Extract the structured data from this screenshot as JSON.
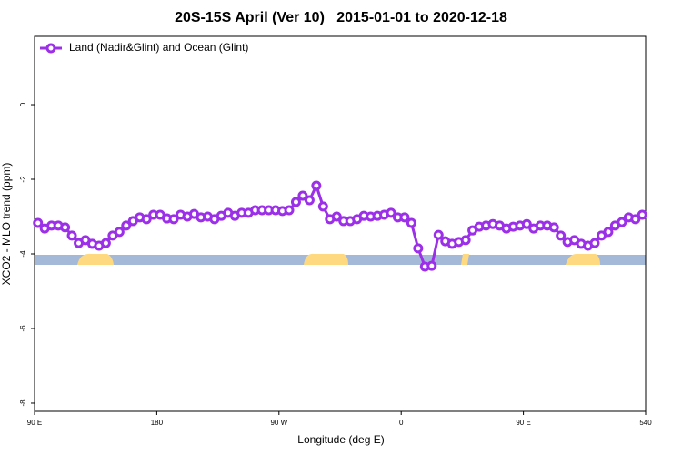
{
  "chart_data": {
    "type": "line",
    "title": "20S-15S April (Ver 10)   2015-01-01 to 2020-12-18",
    "x_label": "Longitude (deg E)",
    "y_label": "XCO2 - MLO trend (ppm)",
    "xlim": [
      90,
      540
    ],
    "ylim": [
      -8.22,
      1.83
    ],
    "xticks": [
      {
        "value": 90,
        "label": "90 E"
      },
      180,
      {
        "value": 270,
        "label": "90 W"
      },
      {
        "value": 360,
        "label": "0"
      },
      {
        "value": 450,
        "label": "90 E"
      },
      540
    ],
    "yticks": [
      0,
      -2,
      -4,
      -6,
      -8
    ],
    "legend": "top-left",
    "x": [
      92.5,
      97.5,
      102.5,
      107.5,
      112.5,
      117.5,
      122.5,
      127.5,
      132.5,
      137.5,
      142.5,
      147.5,
      152.5,
      157.5,
      162.5,
      167.5,
      172.5,
      177.5,
      182.5,
      187.5,
      192.5,
      197.5,
      202.5,
      207.5,
      212.5,
      217.5,
      222.5,
      227.5,
      232.5,
      237.5,
      242.5,
      247.5,
      252.5,
      257.5,
      262.5,
      267.5,
      272.5,
      277.5,
      282.5,
      287.5,
      292.5,
      297.5,
      302.5,
      307.5,
      312.5,
      317.5,
      322.5,
      327.5,
      332.5,
      337.5,
      342.5,
      347.5,
      352.5,
      357.5,
      362.5,
      367.5,
      372.5,
      377.5,
      382.5,
      387.5,
      392.5,
      397.5,
      402.5,
      407.5,
      412.5,
      417.5,
      422.5,
      427.5,
      432.5,
      437.5,
      442.5,
      447.5,
      452.5,
      457.5,
      462.5,
      467.5,
      472.5,
      477.5,
      482.5,
      487.5,
      492.5,
      497.5,
      502.5,
      507.5,
      512.5,
      517.5,
      522.5,
      527.5,
      532.5,
      537.5
    ],
    "series": [
      {
        "name": "Land (Nadir&Glint) and Ocean (Glint)",
        "color": "#9b30e8",
        "values": [
          -3.17,
          -3.32,
          -3.24,
          -3.24,
          -3.29,
          -3.51,
          -3.71,
          -3.63,
          -3.73,
          -3.78,
          -3.71,
          -3.51,
          -3.41,
          -3.24,
          -3.12,
          -3.02,
          -3.07,
          -2.95,
          -2.95,
          -3.05,
          -3.07,
          -2.95,
          -3.0,
          -2.93,
          -3.02,
          -3.0,
          -3.07,
          -2.98,
          -2.9,
          -2.98,
          -2.9,
          -2.9,
          -2.83,
          -2.83,
          -2.83,
          -2.83,
          -2.85,
          -2.83,
          -2.61,
          -2.44,
          -2.56,
          -2.17,
          -2.73,
          -3.07,
          -3.0,
          -3.12,
          -3.12,
          -3.07,
          -2.98,
          -3.0,
          -2.98,
          -2.95,
          -2.9,
          -3.02,
          -3.02,
          -3.17,
          -3.85,
          -4.34,
          -4.32,
          -3.49,
          -3.66,
          -3.73,
          -3.68,
          -3.63,
          -3.37,
          -3.27,
          -3.24,
          -3.2,
          -3.24,
          -3.32,
          -3.27,
          -3.24,
          -3.2,
          -3.32,
          -3.24,
          -3.24,
          -3.29,
          -3.51,
          -3.68,
          -3.63,
          -3.73,
          -3.78,
          -3.71,
          -3.51,
          -3.41,
          -3.24,
          -3.15,
          -3.02,
          -3.07,
          -2.95
        ]
      }
    ]
  }
}
